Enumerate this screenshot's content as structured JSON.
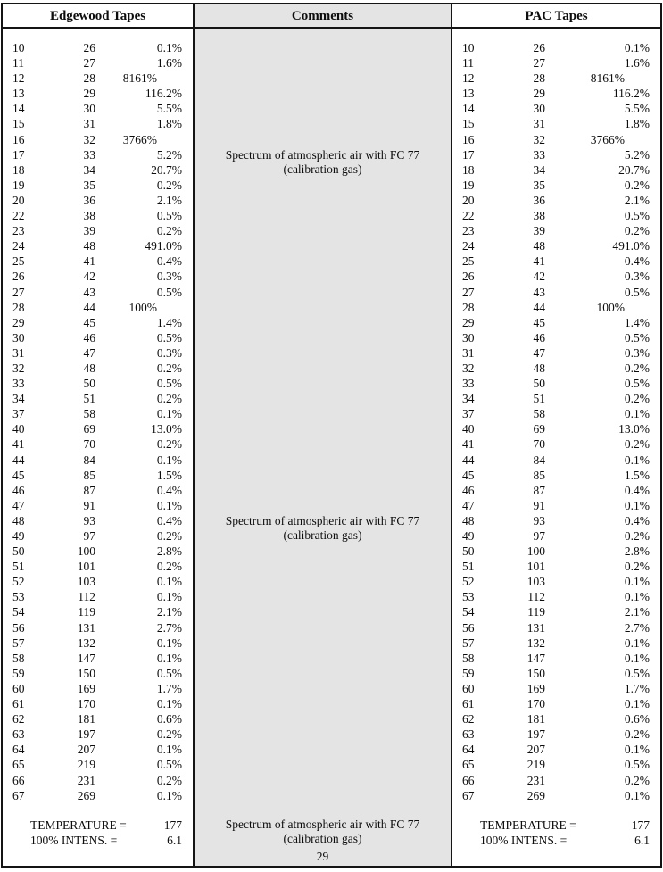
{
  "table": {
    "headers": {
      "left": "Edgewood Tapes",
      "center": "Comments",
      "right": "PAC Tapes"
    },
    "rows": [
      [
        "10",
        "26",
        "0.1%"
      ],
      [
        "11",
        "27",
        "1.6%"
      ],
      [
        "12",
        "28",
        "8161%"
      ],
      [
        "13",
        "29",
        "116.2%"
      ],
      [
        "14",
        "30",
        "5.5%"
      ],
      [
        "15",
        "31",
        "1.8%"
      ],
      [
        "16",
        "32",
        "3766%"
      ],
      [
        "17",
        "33",
        "5.2%"
      ],
      [
        "18",
        "34",
        "20.7%"
      ],
      [
        "19",
        "35",
        "0.2%"
      ],
      [
        "20",
        "36",
        "2.1%"
      ],
      [
        "22",
        "38",
        "0.5%"
      ],
      [
        "23",
        "39",
        "0.2%"
      ],
      [
        "24",
        "48",
        "491.0%"
      ],
      [
        "25",
        "41",
        "0.4%"
      ],
      [
        "26",
        "42",
        "0.3%"
      ],
      [
        "27",
        "43",
        "0.5%"
      ],
      [
        "28",
        "44",
        "100%"
      ],
      [
        "29",
        "45",
        "1.4%"
      ],
      [
        "30",
        "46",
        "0.5%"
      ],
      [
        "31",
        "47",
        "0.3%"
      ],
      [
        "32",
        "48",
        "0.2%"
      ],
      [
        "33",
        "50",
        "0.5%"
      ],
      [
        "34",
        "51",
        "0.2%"
      ],
      [
        "37",
        "58",
        "0.1%"
      ],
      [
        "40",
        "69",
        "13.0%"
      ],
      [
        "41",
        "70",
        "0.2%"
      ],
      [
        "44",
        "84",
        "0.1%"
      ],
      [
        "45",
        "85",
        "1.5%"
      ],
      [
        "46",
        "87",
        "0.4%"
      ],
      [
        "47",
        "91",
        "0.1%"
      ],
      [
        "48",
        "93",
        "0.4%"
      ],
      [
        "49",
        "97",
        "0.2%"
      ],
      [
        "50",
        "100",
        "2.8%"
      ],
      [
        "51",
        "101",
        "0.2%"
      ],
      [
        "52",
        "103",
        "0.1%"
      ],
      [
        "53",
        "112",
        "0.1%"
      ],
      [
        "54",
        "119",
        "2.1%"
      ],
      [
        "56",
        "131",
        "2.7%"
      ],
      [
        "57",
        "132",
        "0.1%"
      ],
      [
        "58",
        "147",
        "0.1%"
      ],
      [
        "59",
        "150",
        "0.5%"
      ],
      [
        "60",
        "169",
        "1.7%"
      ],
      [
        "61",
        "170",
        "0.1%"
      ],
      [
        "62",
        "181",
        "0.6%"
      ],
      [
        "63",
        "197",
        "0.2%"
      ],
      [
        "64",
        "207",
        "0.1%"
      ],
      [
        "65",
        "219",
        "0.5%"
      ],
      [
        "66",
        "231",
        "0.2%"
      ],
      [
        "67",
        "269",
        "0.1%"
      ]
    ],
    "footer": {
      "temperature_label": "TEMPERATURE =",
      "temperature_value": "177",
      "intensity_label": "100% INTENS. =",
      "intensity_value": "6.1"
    }
  },
  "comments": [
    {
      "line1": "Spectrum of atmospheric air with FC 77",
      "line2": "(calibration gas)"
    },
    {
      "line1": "Spectrum of atmospheric air with FC 77",
      "line2": "(calibration gas)"
    },
    {
      "line1": "Spectrum of atmospheric air with FC 77",
      "line2": "(calibration gas)"
    }
  ],
  "page_number": "29",
  "colors": {
    "comments_bg": "#e4e4e4",
    "border": "#141414"
  }
}
